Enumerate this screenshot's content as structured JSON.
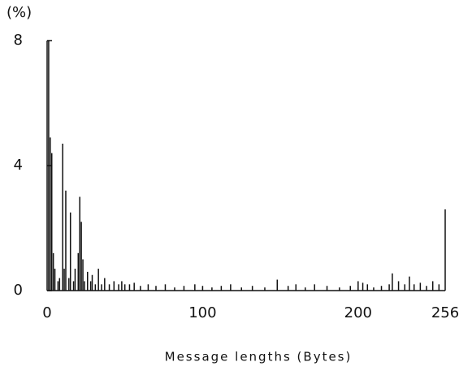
{
  "chart_data": {
    "type": "spike",
    "y_unit_label": "(%)",
    "x_label": "Message lengths (Bytes)",
    "x": [
      1,
      2,
      3,
      4,
      5,
      7,
      8,
      10,
      11,
      12,
      14,
      15,
      17,
      18,
      20,
      21,
      22,
      23,
      24,
      26,
      28,
      29,
      31,
      33,
      35,
      37,
      40,
      43,
      46,
      48,
      50,
      53,
      56,
      60,
      65,
      70,
      76,
      82,
      88,
      95,
      100,
      106,
      112,
      118,
      125,
      132,
      140,
      148,
      155,
      160,
      166,
      172,
      180,
      188,
      195,
      200,
      203,
      206,
      210,
      215,
      220,
      222,
      226,
      230,
      233,
      236,
      240,
      244,
      248,
      252,
      256
    ],
    "values": [
      8.0,
      4.9,
      4.4,
      1.2,
      0.7,
      0.3,
      0.4,
      4.7,
      0.7,
      3.2,
      0.4,
      2.5,
      0.3,
      0.7,
      1.2,
      3.0,
      2.2,
      1.0,
      0.3,
      0.6,
      0.3,
      0.5,
      0.2,
      0.7,
      0.2,
      0.4,
      0.2,
      0.3,
      0.2,
      0.3,
      0.2,
      0.2,
      0.25,
      0.15,
      0.2,
      0.15,
      0.2,
      0.1,
      0.15,
      0.2,
      0.15,
      0.1,
      0.15,
      0.2,
      0.1,
      0.15,
      0.1,
      0.35,
      0.15,
      0.2,
      0.1,
      0.2,
      0.15,
      0.1,
      0.15,
      0.3,
      0.25,
      0.2,
      0.1,
      0.15,
      0.2,
      0.55,
      0.3,
      0.2,
      0.45,
      0.2,
      0.25,
      0.15,
      0.3,
      0.2,
      2.6
    ],
    "color": "#111111",
    "xlim": [
      0,
      256
    ],
    "xticks": [
      0,
      100,
      200,
      256
    ],
    "ylim": [
      0,
      8
    ],
    "yticks": [
      0,
      4,
      8
    ]
  }
}
